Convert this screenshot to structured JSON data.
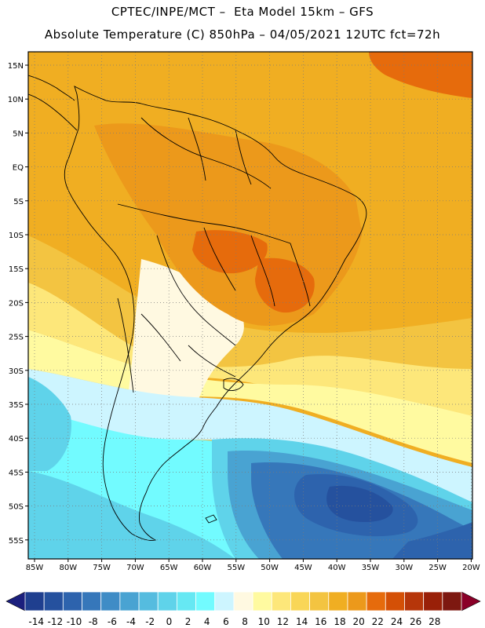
{
  "header": {
    "line1": "CPTEC/INPE/MCT –  Eta Model 15km – GFS",
    "line2": "Absolute Temperature (C) 850hPa – 04/05/2021 12UTC fct=72h"
  },
  "axes": {
    "lat_labels": [
      "15N",
      "10N",
      "5N",
      "EQ",
      "5S",
      "10S",
      "15S",
      "20S",
      "25S",
      "30S",
      "35S",
      "40S",
      "45S",
      "50S",
      "55S"
    ],
    "lon_labels": [
      "85W",
      "80W",
      "75W",
      "70W",
      "65W",
      "60W",
      "55W",
      "50W",
      "45W",
      "40W",
      "35W",
      "30W",
      "25W",
      "20W"
    ]
  },
  "colorbar": {
    "tick_labels": [
      "-14",
      "-12",
      "-10",
      "-8",
      "-6",
      "-4",
      "-2",
      "0",
      "2",
      "4",
      "6",
      "8",
      "10",
      "12",
      "14",
      "16",
      "18",
      "20",
      "22",
      "24",
      "26",
      "28"
    ],
    "colors": [
      "#1f3f8f",
      "#25519e",
      "#2d63ad",
      "#3677ba",
      "#3f8cc6",
      "#49a3d2",
      "#55bcdf",
      "#5fd3ea",
      "#66e8f3",
      "#72fbff",
      "#cdf5ff",
      "#fff9e1",
      "#fffaa0",
      "#fde77a",
      "#f9d657",
      "#f3c441",
      "#f0ae22",
      "#ec991b",
      "#e66b0c",
      "#d45006",
      "#b6360a",
      "#992008",
      "#7d1810"
    ],
    "low_arrow_color": "#1b1f7d",
    "high_arrow_color": "#8a0028"
  },
  "palette": {
    "very_warm": "#e66b0c",
    "warm": "#ec991b",
    "orange": "#f0ae22",
    "amber": "#f3c441",
    "yellow": "#fde77a",
    "pale_yellow": "#fffaa0",
    "cream": "#fff9e1",
    "ice": "#cdf5ff",
    "cyan": "#72fbff",
    "light_blue": "#5fd3ea",
    "mid_blue": "#49a3d2",
    "blue": "#3677ba",
    "deep_blue": "#2d63ad",
    "darkest_blue": "#25519e"
  }
}
